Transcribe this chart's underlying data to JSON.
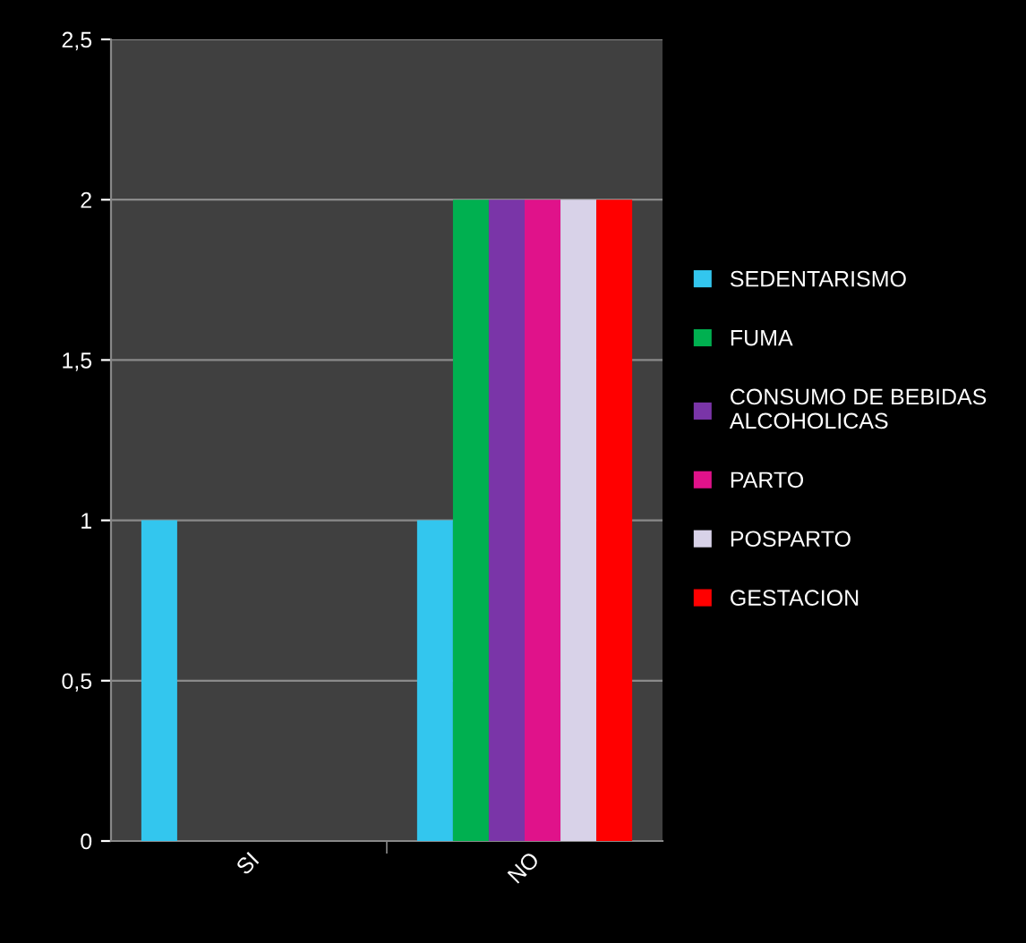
{
  "chart_data": {
    "type": "bar",
    "categories": [
      "SI",
      "NO"
    ],
    "series": [
      {
        "name": "SEDENTARISMO",
        "color": "#33c6ee",
        "values": [
          1,
          1
        ]
      },
      {
        "name": "FUMA",
        "color": "#00b050",
        "values": [
          0,
          2
        ]
      },
      {
        "name": "CONSUMO DE BEBIDAS ALCOHOLICAS",
        "color": "#7a35a8",
        "values": [
          0,
          2
        ]
      },
      {
        "name": "PARTO",
        "color": "#e0128a",
        "values": [
          0,
          2
        ]
      },
      {
        "name": "POSPARTO",
        "color": "#d8d2e8",
        "values": [
          0,
          2
        ]
      },
      {
        "name": "GESTACION",
        "color": "#ff0000",
        "values": [
          0,
          2
        ]
      }
    ],
    "ylim": [
      0,
      2.5
    ],
    "yticks": [
      0,
      {
        "value": 0.5,
        "label": "0,5"
      },
      1,
      {
        "value": 1.5,
        "label": "1,5"
      },
      2,
      {
        "value": 2.5,
        "label": "2,5"
      }
    ],
    "grid": "y",
    "legend": "right"
  }
}
